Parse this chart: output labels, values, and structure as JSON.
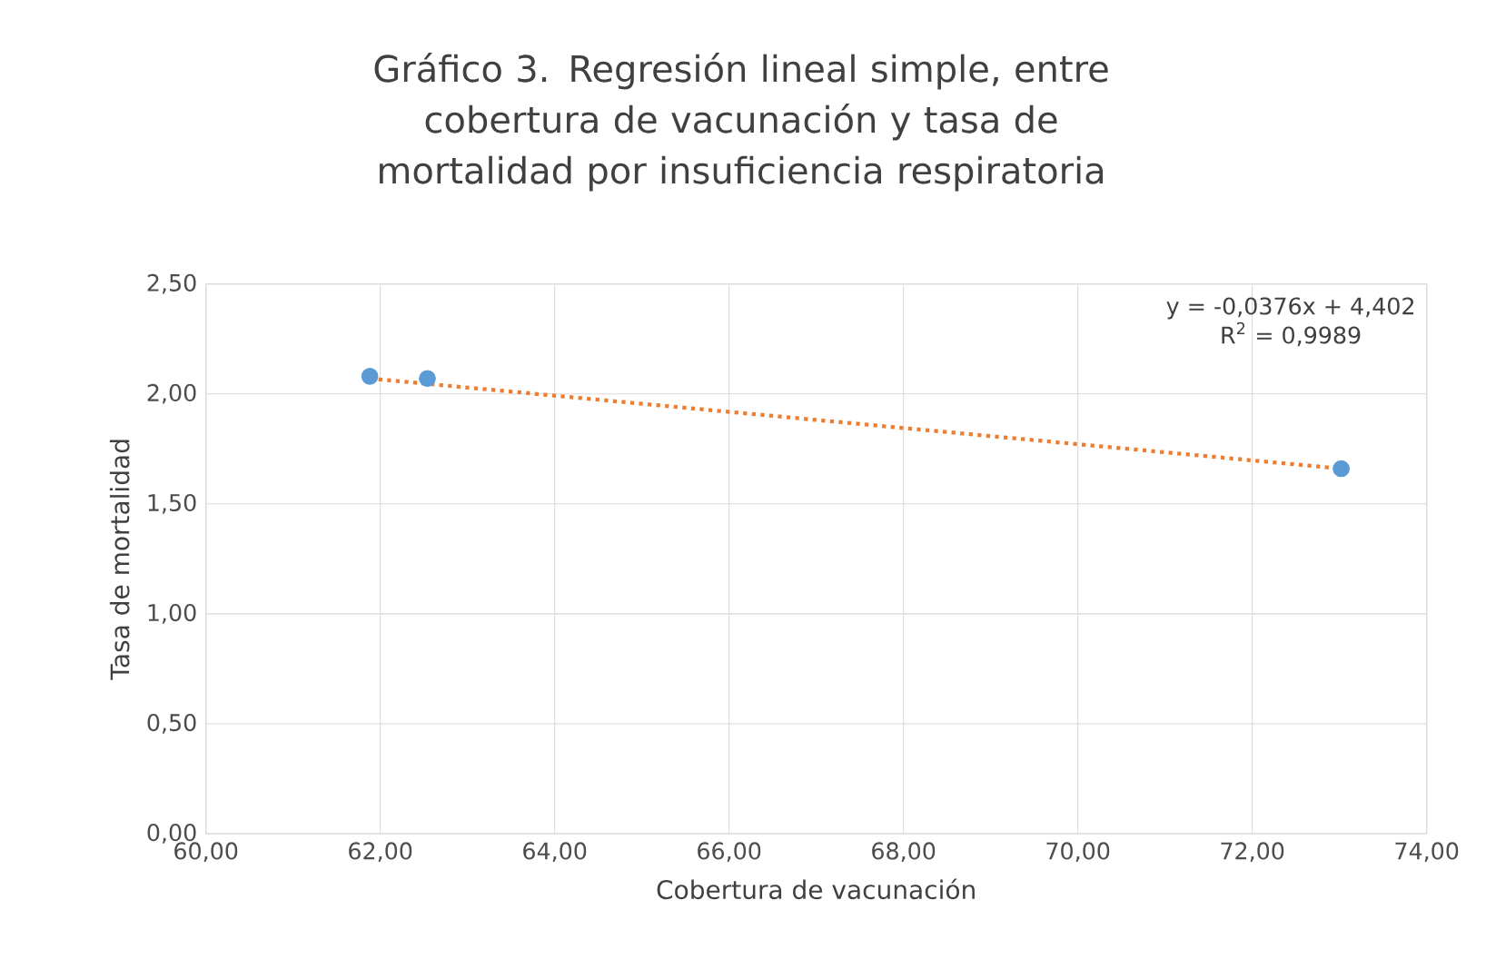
{
  "chart_data": {
    "type": "scatter",
    "title": "Gráfico 3. Regresión lineal simple, entre cobertura de vacunación y tasa de mortalidad por insuficiencia respiratoria",
    "xlabel": "Cobertura de vacunación",
    "ylabel": "Tasa de mortalidad",
    "series": [
      {
        "color": "#5b9bd5",
        "x": [
          61.88,
          62.54,
          73.02
        ],
        "values": [
          2.08,
          2.07,
          1.66
        ],
        "marker": "circle"
      },
      {
        "type": "line",
        "color": "#ed7d31",
        "x": [
          61.88,
          73.02
        ],
        "values": [
          2.07,
          1.66
        ],
        "line_style": "dotted",
        "marker": "none"
      }
    ],
    "xlim": [
      60,
      74
    ],
    "ylim": [
      0,
      2.5
    ],
    "xticks": [
      {
        "value": 60,
        "label": "60,00"
      },
      {
        "value": 62,
        "label": "62,00"
      },
      {
        "value": 64,
        "label": "64,00"
      },
      {
        "value": 66,
        "label": "66,00"
      },
      {
        "value": 68,
        "label": "68,00"
      },
      {
        "value": 70,
        "label": "70,00"
      },
      {
        "value": 72,
        "label": "72,00"
      },
      {
        "value": 74,
        "label": "74,00"
      }
    ],
    "yticks": [
      {
        "value": 0,
        "label": "0,00"
      },
      {
        "value": 0.5,
        "label": "0,50"
      },
      {
        "value": 1,
        "label": "1,00"
      },
      {
        "value": 1.5,
        "label": "1,50"
      },
      {
        "value": 2,
        "label": "2,00"
      },
      {
        "value": 2.5,
        "label": "2,50"
      }
    ],
    "grid": true,
    "annotations": [
      "y = -0,0376x + 4,402",
      "R$^{2}$ = 0,9989"
    ]
  }
}
